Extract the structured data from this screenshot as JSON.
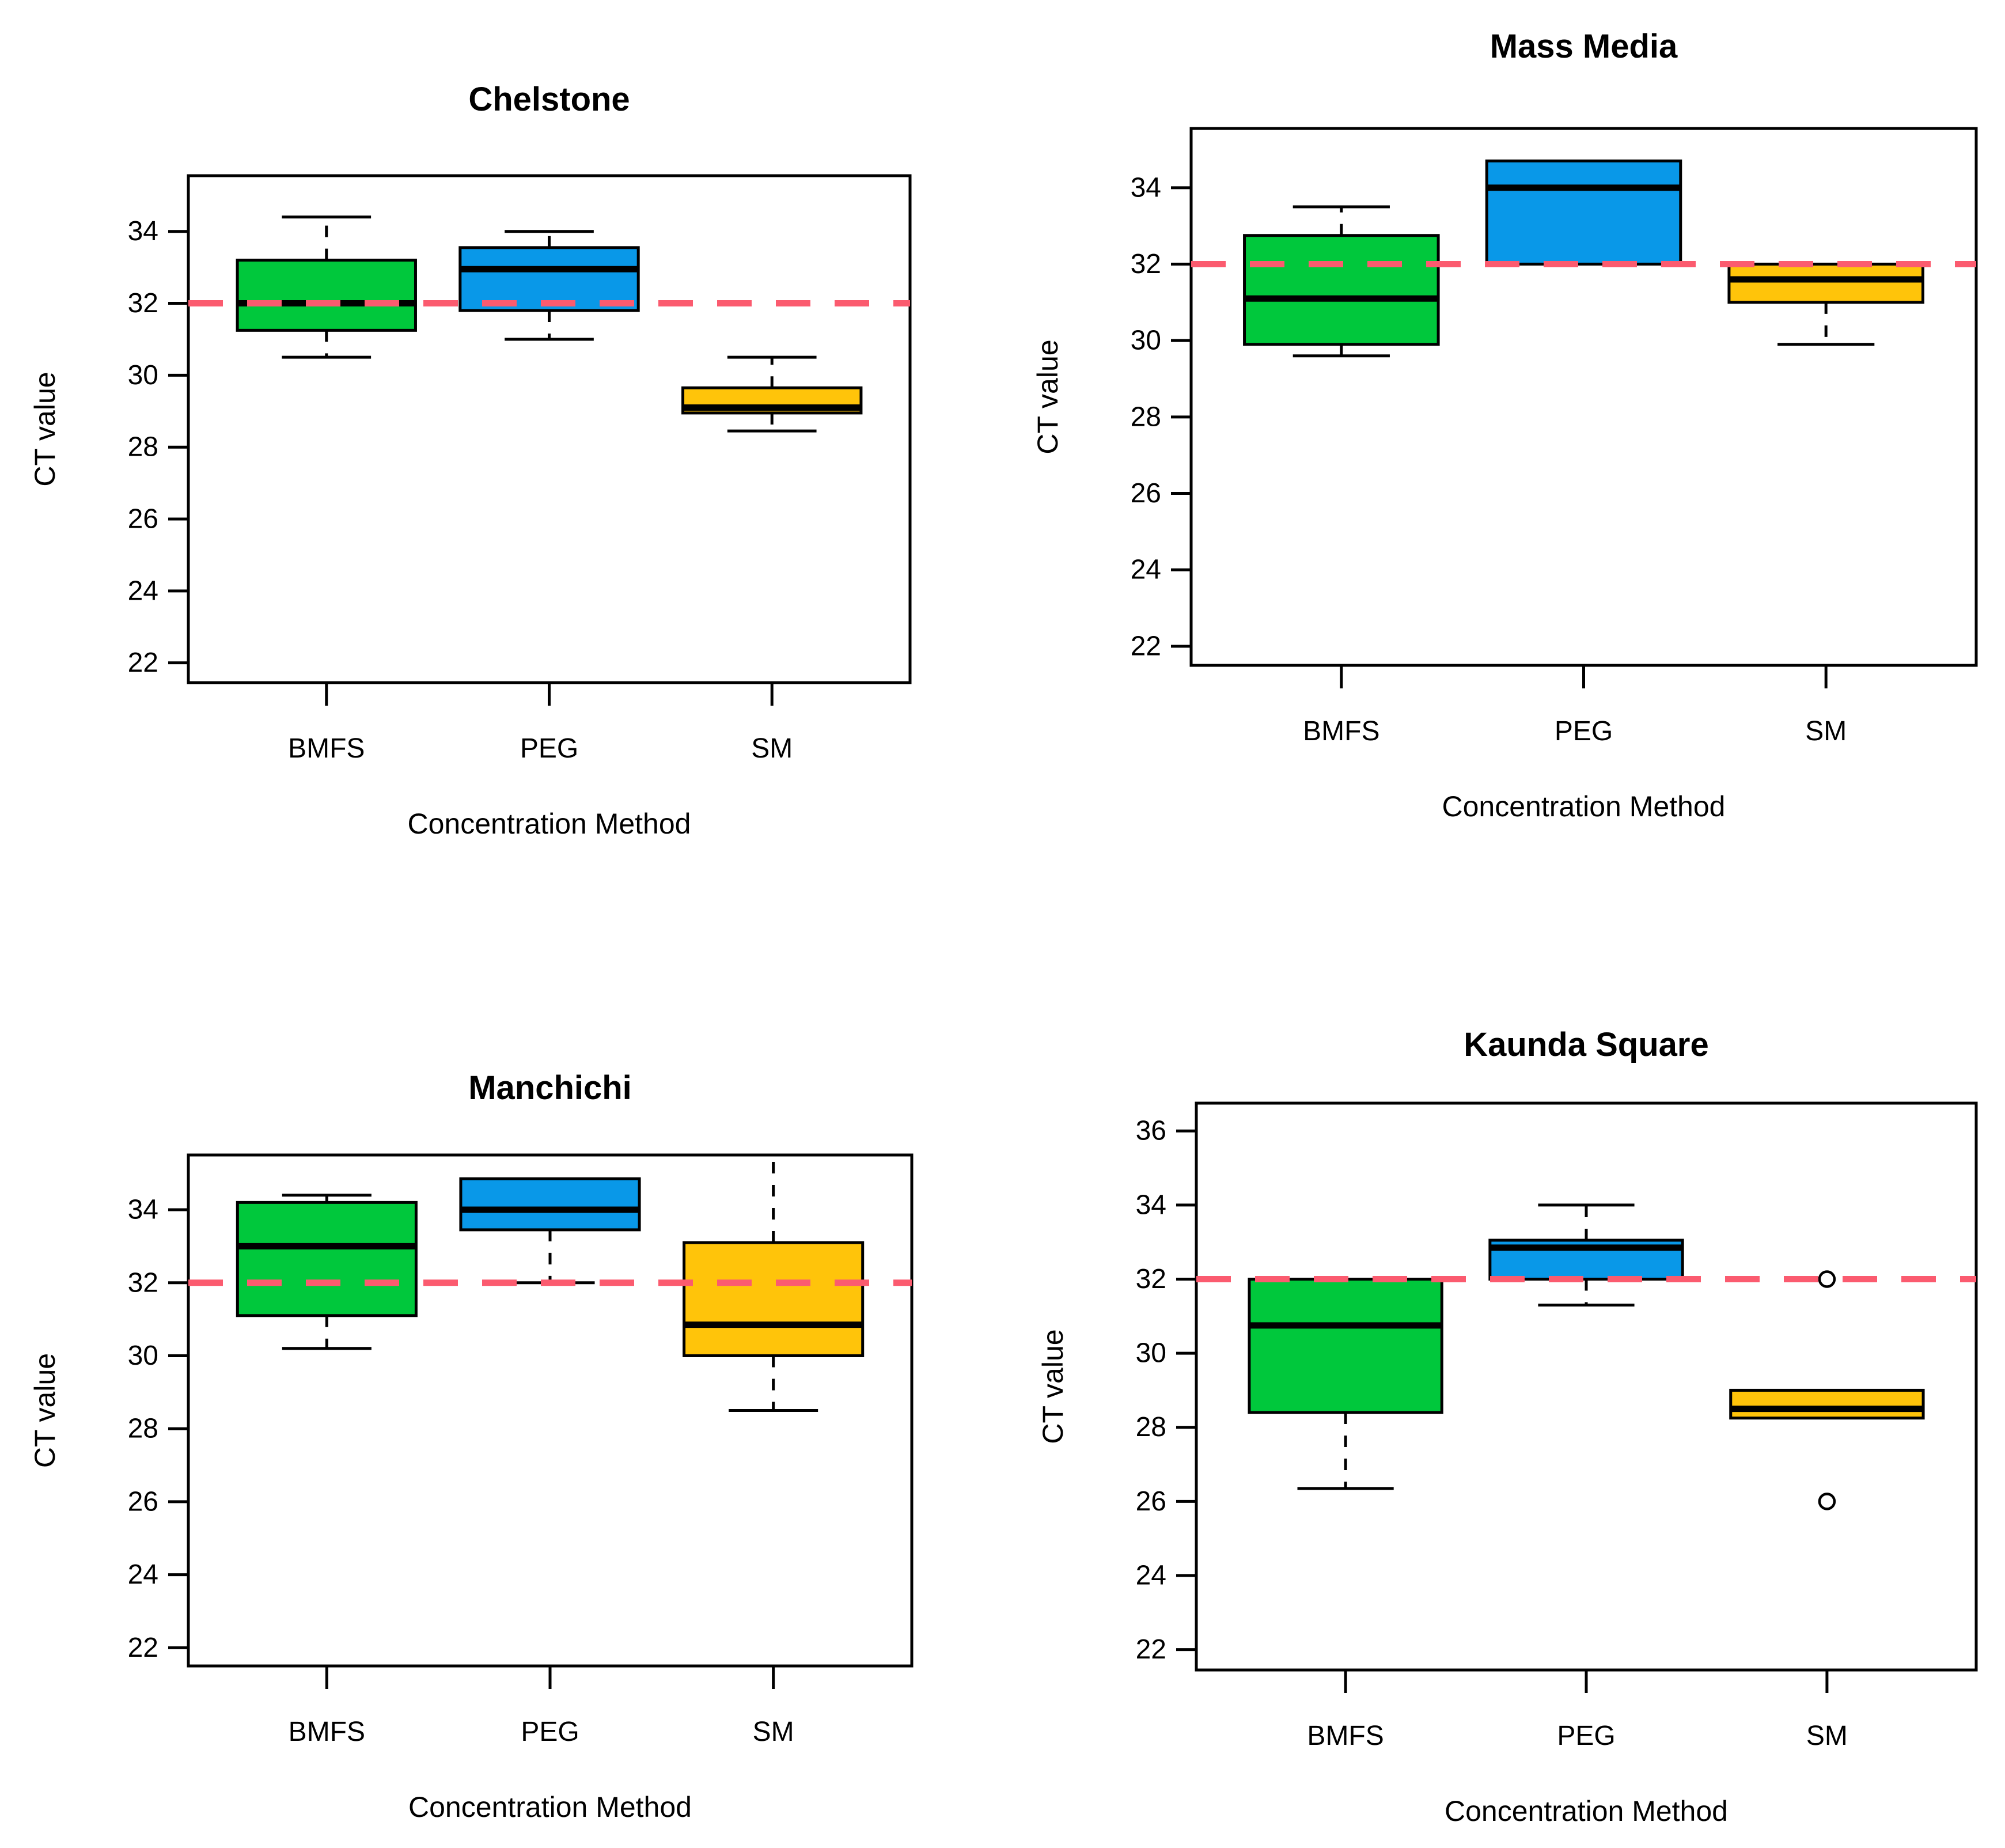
{
  "figure": {
    "background": "#FFFFFF",
    "frame_color": "#000000",
    "refline_color": "#FB5B6F",
    "outlier_style": "open-circle"
  },
  "chart_data": [
    {
      "type": "boxplot",
      "title": "Chelstone",
      "xlabel": "Concentration Method",
      "ylabel": "CT value",
      "categories": [
        "BMFS",
        "PEG",
        "SM"
      ],
      "ylim": [
        21.45,
        35.55
      ],
      "yticks": [
        22,
        24,
        26,
        28,
        30,
        32,
        34
      ],
      "refline": 32,
      "grid": false,
      "boxes": [
        {
          "category": "BMFS",
          "color": "#00C83C",
          "whisker_low": 30.5,
          "q1": 31.25,
          "median": 32.0,
          "q3": 33.2,
          "whisker_high": 34.4,
          "outliers": []
        },
        {
          "category": "PEG",
          "color": "#0998E8",
          "whisker_low": 31.0,
          "q1": 31.8,
          "median": 32.95,
          "q3": 33.55,
          "whisker_high": 34.0,
          "outliers": []
        },
        {
          "category": "SM",
          "color": "#FFC40A",
          "whisker_low": 28.45,
          "q1": 28.95,
          "median": 29.1,
          "q3": 29.65,
          "whisker_high": 30.5,
          "outliers": []
        }
      ]
    },
    {
      "type": "boxplot",
      "title": "Mass Media",
      "xlabel": "Concentration Method",
      "ylabel": "CT value",
      "categories": [
        "BMFS",
        "PEG",
        "SM"
      ],
      "ylim": [
        21.5,
        35.55
      ],
      "yticks": [
        22,
        24,
        26,
        28,
        30,
        32,
        34
      ],
      "refline": 32,
      "grid": false,
      "boxes": [
        {
          "category": "BMFS",
          "color": "#00C83C",
          "whisker_low": 29.6,
          "q1": 29.9,
          "median": 31.1,
          "q3": 32.75,
          "whisker_high": 33.5,
          "outliers": []
        },
        {
          "category": "PEG",
          "color": "#0998E8",
          "whisker_low": 32.0,
          "q1": 32.0,
          "median": 34.0,
          "q3": 34.7,
          "whisker_high": 34.7,
          "outliers": []
        },
        {
          "category": "SM",
          "color": "#FFC40A",
          "whisker_low": 29.9,
          "q1": 31.0,
          "median": 31.6,
          "q3": 32.0,
          "whisker_high": 32.0,
          "outliers": []
        }
      ]
    },
    {
      "type": "boxplot",
      "title": "Manchichi",
      "xlabel": "Concentration Method",
      "ylabel": "CT value",
      "categories": [
        "BMFS",
        "PEG",
        "SM"
      ],
      "ylim": [
        21.5,
        35.5
      ],
      "yticks": [
        22,
        24,
        26,
        28,
        30,
        32,
        34
      ],
      "refline": 32,
      "grid": false,
      "boxes": [
        {
          "category": "BMFS",
          "color": "#00C83C",
          "whisker_low": 30.2,
          "q1": 31.1,
          "median": 33.0,
          "q3": 34.2,
          "whisker_high": 34.4,
          "outliers": []
        },
        {
          "category": "PEG",
          "color": "#0998E8",
          "whisker_low": 32.0,
          "q1": 33.45,
          "median": 34.0,
          "q3": 34.85,
          "whisker_high": 34.85,
          "outliers": []
        },
        {
          "category": "SM",
          "color": "#FFC40A",
          "whisker_low": 28.5,
          "q1": 30.0,
          "median": 30.85,
          "q3": 33.1,
          "whisker_high": 36.0,
          "outliers": []
        }
      ]
    },
    {
      "type": "boxplot",
      "title": "Kaunda Square",
      "xlabel": "Concentration Method",
      "ylabel": "CT value",
      "categories": [
        "BMFS",
        "PEG",
        "SM"
      ],
      "ylim": [
        21.45,
        36.75
      ],
      "yticks": [
        22,
        24,
        26,
        28,
        30,
        32,
        34,
        36
      ],
      "refline": 32,
      "grid": false,
      "boxes": [
        {
          "category": "BMFS",
          "color": "#00C83C",
          "whisker_low": 26.35,
          "q1": 28.4,
          "median": 30.75,
          "q3": 32.0,
          "whisker_high": 32.0,
          "outliers": []
        },
        {
          "category": "PEG",
          "color": "#0998E8",
          "whisker_low": 31.3,
          "q1": 32.0,
          "median": 32.85,
          "q3": 33.05,
          "whisker_high": 34.0,
          "outliers": []
        },
        {
          "category": "SM",
          "color": "#FFC40A",
          "whisker_low": 28.25,
          "q1": 28.25,
          "median": 28.5,
          "q3": 29.0,
          "whisker_high": 29.0,
          "outliers": [
            32.0,
            26.0
          ]
        }
      ]
    }
  ]
}
